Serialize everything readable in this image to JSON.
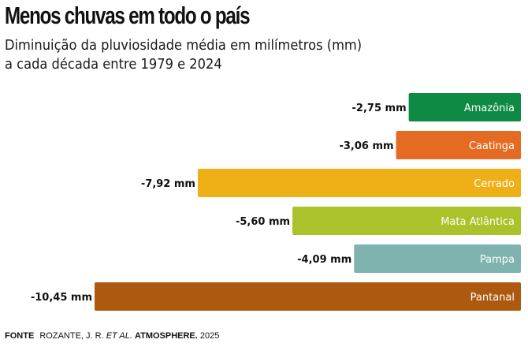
{
  "chart_data": {
    "type": "bar",
    "orientation": "horizontal",
    "title": "Menos chuvas em todo o país",
    "subtitle_lines": [
      "Diminuição da pluviosidade média em milímetros (mm)",
      "a cada década entre 1979 e 2024"
    ],
    "xlabel": "",
    "ylabel": "",
    "unit": "mm",
    "grid": false,
    "bar_alignment": "right",
    "xlim": [
      0,
      10.45
    ],
    "categories": [
      "Amazônia",
      "Caatinga",
      "Cerrado",
      "Mata Atlântica",
      "Pampa",
      "Pantanal"
    ],
    "values": [
      -2.75,
      -3.06,
      -7.92,
      -5.6,
      -4.09,
      -10.45
    ],
    "value_labels": [
      "-2,75 mm",
      "-3,06 mm",
      "-7,92 mm",
      "-5,60 mm",
      "-4,09 mm",
      "-10,45 mm"
    ],
    "colors": [
      "#0f8a44",
      "#e56b22",
      "#efaf17",
      "#abc22a",
      "#7fb3b0",
      "#ad5a10"
    ]
  },
  "source": {
    "label": "FONTE",
    "authors": "ROZANTE, J. R.",
    "etal": "ET AL.",
    "journal": "ATMOSPHERE.",
    "year": "2025"
  }
}
